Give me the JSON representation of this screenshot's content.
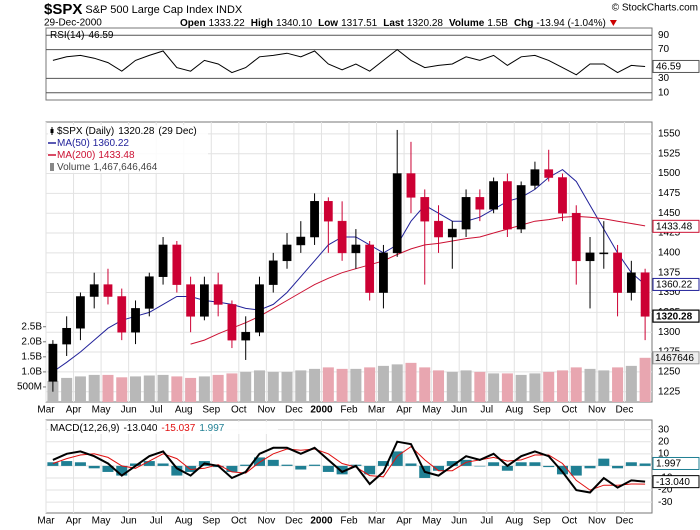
{
  "header": {
    "symbol": "$SPX",
    "name": "S&P 500 Large Cap Index",
    "exchange": "INDX",
    "date": "29-Dec-2000",
    "copyright": "© StockCharts.com",
    "quote": [
      {
        "label": "Open",
        "value": "1333.22"
      },
      {
        "label": "High",
        "value": "1340.10"
      },
      {
        "label": "Low",
        "value": "1317.51"
      },
      {
        "label": "Last",
        "value": "1320.28"
      },
      {
        "label": "Volume",
        "value": "1.5B"
      },
      {
        "label": "Chg",
        "value": "-13.94 (-1.04%)"
      }
    ]
  },
  "chart_data": [
    {
      "type": "line",
      "title": "RSI(14)",
      "color": "#000000",
      "last": 46.59,
      "ylim": [
        0,
        100
      ],
      "yticks": [
        90,
        70,
        30,
        10
      ],
      "grid": true,
      "values": [
        55,
        60,
        62,
        58,
        52,
        40,
        55,
        62,
        68,
        45,
        40,
        55,
        50,
        38,
        45,
        60,
        62,
        65,
        60,
        68,
        50,
        42,
        50,
        40,
        55,
        70,
        55,
        45,
        48,
        50,
        60,
        55,
        62,
        48,
        60,
        62,
        55,
        45,
        35,
        50,
        50,
        38,
        48,
        46.59
      ]
    },
    {
      "type": "candlestick",
      "title": "$SPX (Daily)",
      "last": 1320.28,
      "date_label": "(29 Dec)",
      "color_up": "#000000",
      "color_down": "#cc0033",
      "grid": true,
      "categories": [
        "Mar",
        null,
        "Apr",
        null,
        "May",
        null,
        "Jun",
        null,
        "Jul",
        null,
        "Aug",
        null,
        "Sep",
        null,
        "Oct",
        null,
        "Nov",
        null,
        "Dec",
        null,
        "2000",
        null,
        "Feb",
        null,
        "Mar",
        null,
        "Apr",
        null,
        "May",
        null,
        "Jun",
        null,
        "Jul",
        null,
        "Aug",
        null,
        "Sep",
        null,
        "Oct",
        null,
        "Nov",
        null,
        "Dec",
        null
      ],
      "open": [
        1238,
        1285,
        1305,
        1345,
        1360,
        1345,
        1300,
        1330,
        1370,
        1410,
        1360,
        1320,
        1360,
        1335,
        1290,
        1300,
        1360,
        1390,
        1410,
        1420,
        1465,
        1440,
        1400,
        1410,
        1350,
        1400,
        1500,
        1470,
        1440,
        1420,
        1430,
        1470,
        1455,
        1490,
        1430,
        1485,
        1505,
        1495,
        1450,
        1390,
        1400,
        1400,
        1350,
        1375
      ],
      "high": [
        1290,
        1320,
        1350,
        1375,
        1380,
        1355,
        1340,
        1375,
        1420,
        1415,
        1370,
        1370,
        1375,
        1340,
        1320,
        1370,
        1400,
        1425,
        1440,
        1475,
        1470,
        1465,
        1430,
        1415,
        1410,
        1555,
        1540,
        1480,
        1460,
        1440,
        1480,
        1480,
        1495,
        1500,
        1490,
        1515,
        1530,
        1500,
        1460,
        1420,
        1440,
        1410,
        1390,
        1380
      ],
      "low": [
        1225,
        1270,
        1290,
        1330,
        1335,
        1290,
        1285,
        1320,
        1360,
        1350,
        1300,
        1315,
        1320,
        1280,
        1265,
        1295,
        1350,
        1380,
        1400,
        1410,
        1400,
        1390,
        1380,
        1340,
        1330,
        1395,
        1450,
        1360,
        1400,
        1380,
        1420,
        1440,
        1450,
        1420,
        1425,
        1480,
        1490,
        1440,
        1360,
        1330,
        1380,
        1320,
        1340,
        1290
      ],
      "close": [
        1285,
        1305,
        1345,
        1360,
        1345,
        1300,
        1330,
        1370,
        1410,
        1360,
        1320,
        1360,
        1335,
        1290,
        1300,
        1360,
        1390,
        1410,
        1420,
        1465,
        1440,
        1400,
        1410,
        1350,
        1400,
        1500,
        1470,
        1440,
        1420,
        1430,
        1470,
        1455,
        1490,
        1430,
        1485,
        1505,
        1495,
        1450,
        1390,
        1400,
        1400,
        1350,
        1375,
        1320
      ],
      "ylim": [
        1212,
        1565
      ],
      "yticks": [
        1225,
        1250,
        1275,
        1300,
        1325,
        1350,
        1375,
        1400,
        1425,
        1450,
        1475,
        1500,
        1525,
        1550
      ],
      "series": [
        {
          "name": "MA(50)",
          "color": "#22229a",
          "last": 1360.22,
          "values": [
            1250,
            1262,
            1275,
            1290,
            1305,
            1315,
            1320,
            1325,
            1335,
            1345,
            1345,
            1340,
            1338,
            1335,
            1330,
            1328,
            1335,
            1350,
            1370,
            1390,
            1410,
            1420,
            1420,
            1410,
            1400,
            1410,
            1440,
            1460,
            1450,
            1440,
            1440,
            1445,
            1455,
            1465,
            1470,
            1480,
            1495,
            1505,
            1490,
            1460,
            1430,
            1400,
            1375,
            1360
          ]
        },
        {
          "name": "MA(200)",
          "color": "#cc1133",
          "last": 1433.48,
          "values": [
            null,
            null,
            null,
            null,
            null,
            null,
            null,
            null,
            null,
            null,
            1285,
            1290,
            1298,
            1305,
            1312,
            1320,
            1330,
            1340,
            1350,
            1360,
            1368,
            1375,
            1380,
            1385,
            1390,
            1398,
            1405,
            1410,
            1412,
            1415,
            1418,
            1420,
            1425,
            1430,
            1435,
            1440,
            1442,
            1445,
            1446,
            1445,
            1443,
            1440,
            1437,
            1434
          ]
        }
      ],
      "volume": {
        "name": "Volume",
        "last": {
          "value": 1467646464,
          "label": "1,467,646,464"
        },
        "axis_label": "1467646",
        "color_up": "#b8b8b8",
        "color_down": "#e8a6b0",
        "ylim": [
          0,
          9300000000
        ],
        "yticks": [
          {
            "value": 500000000,
            "label": "500M"
          },
          {
            "value": 1000000000,
            "label": "1.0B"
          },
          {
            "value": 1500000000,
            "label": "1.5B"
          },
          {
            "value": 2000000000,
            "label": "2.0B"
          },
          {
            "value": 2500000000,
            "label": "2.5B"
          }
        ],
        "values": [
          700000000,
          800000000,
          850000000,
          900000000,
          900000000,
          820000000,
          850000000,
          880000000,
          900000000,
          850000000,
          800000000,
          850000000,
          900000000,
          950000000,
          1000000000,
          1050000000,
          1000000000,
          1000000000,
          1050000000,
          1100000000,
          1150000000,
          1100000000,
          1100000000,
          1150000000,
          1200000000,
          1250000000,
          1300000000,
          1150000000,
          1050000000,
          1000000000,
          1050000000,
          1000000000,
          950000000,
          950000000,
          900000000,
          950000000,
          1000000000,
          1050000000,
          1150000000,
          1100000000,
          1050000000,
          1150000000,
          1200000000,
          1467646464
        ]
      }
    },
    {
      "type": "macd",
      "title": "MACD(12,26,9)",
      "ylim": [
        -39,
        38
      ],
      "yticks": [
        30,
        20,
        10,
        0,
        -10,
        -20,
        -30
      ],
      "grid": true,
      "categories": [
        "Mar",
        null,
        "Apr",
        null,
        "May",
        null,
        "Jun",
        null,
        "Jul",
        null,
        "Aug",
        null,
        "Sep",
        null,
        "Oct",
        null,
        "Nov",
        null,
        "Dec",
        null,
        "2000",
        null,
        "Feb",
        null,
        "Mar",
        null,
        "Apr",
        null,
        "May",
        null,
        "Jun",
        null,
        "Jul",
        null,
        "Aug",
        null,
        "Sep",
        null,
        "Oct",
        null,
        "Nov",
        null,
        "Dec",
        null
      ],
      "macd": {
        "color": "#000000",
        "last": {
          "value": -13.04,
          "label": "-13.040"
        },
        "values": [
          5,
          10,
          12,
          8,
          2,
          -8,
          0,
          8,
          12,
          -2,
          -8,
          2,
          0,
          -10,
          -5,
          10,
          15,
          15,
          10,
          15,
          5,
          -5,
          0,
          -15,
          -5,
          20,
          18,
          -5,
          -8,
          0,
          8,
          5,
          10,
          0,
          8,
          12,
          8,
          -5,
          -20,
          -22,
          -10,
          -18,
          -12,
          -13.04
        ]
      },
      "signal": {
        "color": "#e01010",
        "last": {
          "value": -15.037,
          "label": "-15.037"
        },
        "values": [
          2,
          6,
          9,
          10,
          7,
          0,
          -2,
          4,
          10,
          6,
          -3,
          -2,
          1,
          -5,
          -6,
          3,
          10,
          14,
          13,
          14,
          10,
          2,
          -1,
          -8,
          -9,
          8,
          16,
          5,
          -4,
          -4,
          3,
          5,
          7,
          4,
          5,
          9,
          9,
          2,
          -12,
          -20,
          -16,
          -16,
          -15,
          -15.037
        ]
      },
      "histogram": {
        "color": "#1f7f93",
        "last": {
          "value": 1.997,
          "label": "1.997"
        },
        "values": [
          3,
          4,
          3,
          -2,
          -5,
          -8,
          2,
          4,
          2,
          -8,
          -5,
          4,
          -1,
          -5,
          1,
          7,
          5,
          1,
          -3,
          1,
          -5,
          -7,
          1,
          -7,
          4,
          12,
          2,
          -10,
          -4,
          4,
          5,
          0,
          3,
          -4,
          3,
          3,
          -1,
          -7,
          -8,
          -2,
          6,
          -2,
          3,
          1.997
        ]
      }
    }
  ]
}
